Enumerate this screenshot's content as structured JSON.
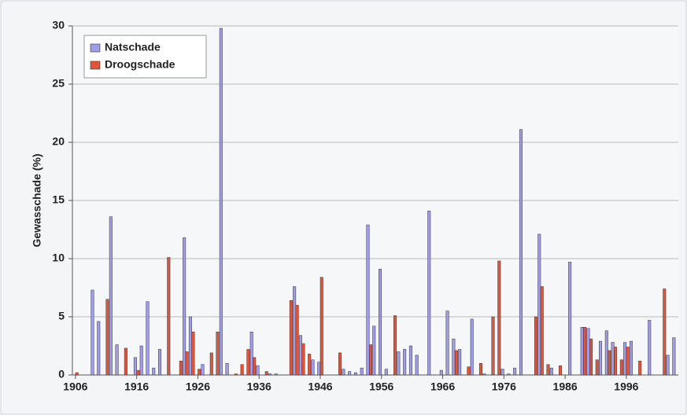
{
  "chart_data": {
    "type": "bar",
    "y_label": "Gewasschade (%)",
    "categories": [
      "1906",
      null,
      null,
      null,
      null,
      null,
      null,
      null,
      null,
      null,
      "1916",
      null,
      null,
      null,
      null,
      null,
      null,
      null,
      null,
      null,
      "1926",
      null,
      null,
      null,
      null,
      null,
      null,
      null,
      null,
      null,
      "1936",
      null,
      null,
      null,
      null,
      null,
      null,
      null,
      null,
      null,
      "1946",
      null,
      null,
      null,
      null,
      null,
      null,
      null,
      null,
      null,
      "1956",
      null,
      null,
      null,
      null,
      null,
      null,
      null,
      null,
      null,
      "1966",
      null,
      null,
      null,
      null,
      null,
      null,
      null,
      null,
      null,
      "1976",
      null,
      null,
      null,
      null,
      null,
      null,
      null,
      null,
      null,
      "1986",
      null,
      null,
      null,
      null,
      null,
      null,
      null,
      null,
      null,
      "1996",
      null,
      null,
      null,
      null,
      null,
      null,
      null,
      null
    ],
    "series": [
      {
        "name": "Natschade",
        "color": "#9f9de6",
        "values": [
          0,
          0,
          0,
          7.3,
          4.6,
          0,
          13.6,
          2.6,
          0,
          0,
          1.5,
          2.5,
          6.3,
          0.6,
          2.2,
          0,
          0,
          0,
          11.8,
          5.0,
          0,
          0.9,
          0,
          0,
          29.8,
          1.0,
          0,
          0,
          0,
          3.7,
          0.8,
          0,
          0.1,
          0.1,
          0,
          0,
          7.6,
          3.4,
          0,
          1.3,
          1.1,
          0,
          0,
          0,
          0.5,
          0.3,
          0.2,
          0.6,
          12.9,
          4.2,
          9.1,
          0.5,
          0,
          2.0,
          2.2,
          2.5,
          1.7,
          0,
          14.1,
          0,
          0.4,
          5.5,
          3.1,
          2.2,
          0,
          4.8,
          0,
          0.1,
          0,
          0,
          0.5,
          0.1,
          0.6,
          21.1,
          0,
          0,
          12.1,
          0,
          0.6,
          0,
          0,
          9.7,
          0,
          4.1,
          4.0,
          0,
          2.9,
          3.8,
          2.8,
          0,
          2.8,
          2.9,
          0,
          0,
          4.7,
          0,
          0,
          1.7,
          3.2
        ]
      },
      {
        "name": "Droogschade",
        "color": "#e2553b",
        "values": [
          0.2,
          0,
          0,
          0,
          0,
          6.5,
          0,
          0,
          2.3,
          0,
          0.4,
          0,
          0,
          0,
          0,
          10.1,
          0,
          1.2,
          2.0,
          3.7,
          0.5,
          0,
          1.9,
          3.7,
          0,
          0,
          0.1,
          0.9,
          2.2,
          1.5,
          0,
          0.3,
          0,
          0,
          0,
          6.4,
          6.0,
          2.7,
          1.8,
          0,
          8.4,
          0,
          0,
          1.9,
          0,
          0,
          0,
          0,
          2.6,
          0,
          0,
          0,
          5.1,
          0,
          0,
          0,
          0,
          0,
          0,
          0,
          0,
          0,
          2.1,
          0,
          0.7,
          0,
          1.0,
          0,
          5.0,
          9.8,
          0,
          0,
          0,
          0,
          0,
          5.0,
          7.6,
          0.9,
          0,
          0.8,
          0,
          0,
          0,
          4.1,
          3.1,
          1.3,
          0,
          2.1,
          2.4,
          1.3,
          2.4,
          0,
          1.2,
          0,
          0,
          0,
          7.4,
          0,
          0
        ]
      }
    ],
    "ylim": [
      0,
      30
    ],
    "yticks": [
      0,
      5,
      10,
      15,
      20,
      25,
      30
    ],
    "grid": true,
    "legend": "upper-left"
  }
}
